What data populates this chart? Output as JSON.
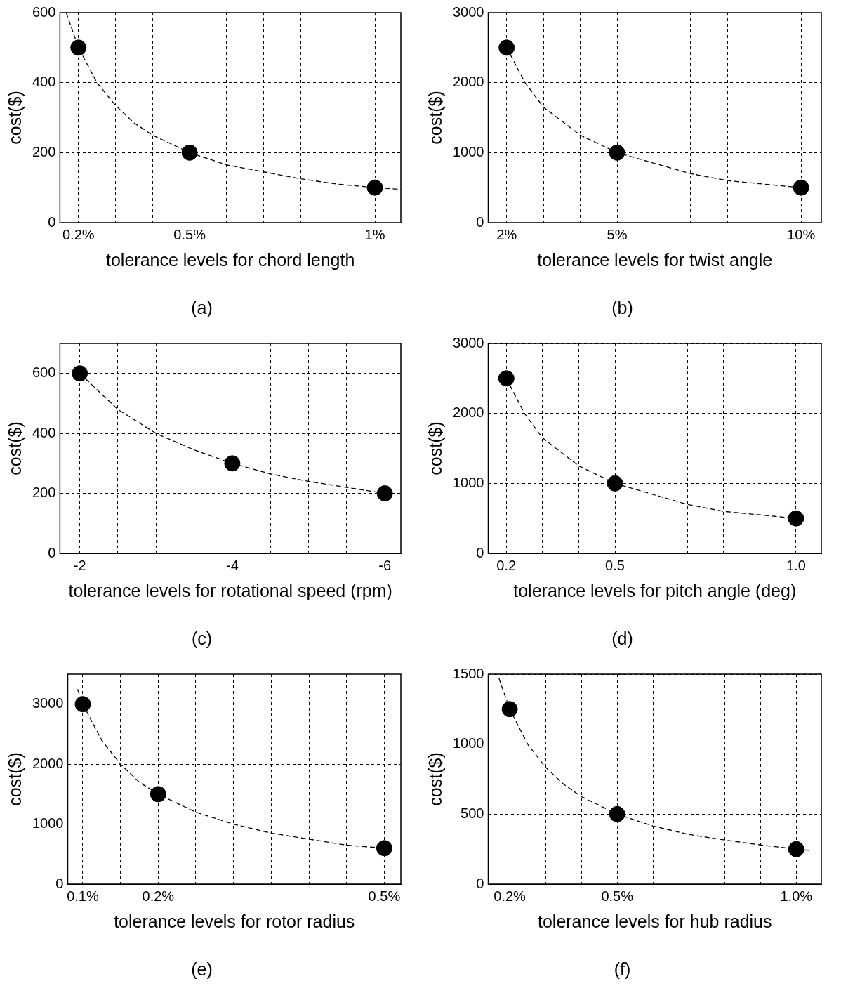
{
  "chart_data": [
    {
      "type": "scatter",
      "title": "(a)",
      "xlabel": "tolerance levels for chord length",
      "ylabel": "cost($)",
      "x": [
        0.2,
        0.5,
        1
      ],
      "xlim": [
        0.15,
        1.07
      ],
      "ylim": [
        0,
        600
      ],
      "xticks": [
        {
          "value": 0.2,
          "label": "0.2%"
        },
        {
          "value": 0.3,
          "label": null
        },
        {
          "value": 0.4,
          "label": null
        },
        {
          "value": 0.5,
          "label": "0.5%"
        },
        {
          "value": 0.6,
          "label": null
        },
        {
          "value": 0.7,
          "label": null
        },
        {
          "value": 0.8,
          "label": null
        },
        {
          "value": 0.9,
          "label": null
        },
        {
          "value": 1,
          "label": "1%"
        }
      ],
      "yticks": [
        0,
        200,
        400,
        600
      ],
      "grid": true,
      "series": [
        {
          "type": "scatter",
          "marker": "circle",
          "color": "#000000",
          "values": [
            500,
            200,
            100
          ]
        },
        {
          "type": "line",
          "marker": "none",
          "line_style": "dashed",
          "color": "#000000",
          "x": [
            0.167,
            0.2,
            0.25,
            0.3,
            0.35,
            0.4,
            0.5,
            0.6,
            0.7,
            0.8,
            0.9,
            1.0,
            1.07
          ],
          "values": [
            600,
            500,
            400,
            335,
            285,
            250,
            200,
            165,
            145,
            125,
            110,
            100,
            95
          ]
        }
      ]
    },
    {
      "type": "scatter",
      "title": "(b)",
      "xlabel": "tolerance levels for twist angle",
      "ylabel": "cost($)",
      "x": [
        2,
        5,
        10
      ],
      "xlim": [
        1.5,
        10.55
      ],
      "ylim": [
        0,
        3000
      ],
      "xticks": [
        {
          "value": 2,
          "label": "2%"
        },
        {
          "value": 3,
          "label": null
        },
        {
          "value": 4,
          "label": null
        },
        {
          "value": 5,
          "label": "5%"
        },
        {
          "value": 6,
          "label": null
        },
        {
          "value": 7,
          "label": null
        },
        {
          "value": 8,
          "label": null
        },
        {
          "value": 9,
          "label": null
        },
        {
          "value": 10,
          "label": "10%"
        }
      ],
      "yticks": [
        0,
        1000,
        2000,
        3000
      ],
      "grid": true,
      "series": [
        {
          "type": "scatter",
          "marker": "circle",
          "color": "#000000",
          "values": [
            2500,
            1000,
            500
          ]
        },
        {
          "type": "line",
          "marker": "none",
          "line_style": "dashed",
          "color": "#000000",
          "x": [
            2,
            2.5,
            3,
            3.5,
            4,
            5,
            6,
            7,
            8,
            9,
            10,
            10.2
          ],
          "values": [
            2500,
            2000,
            1650,
            1450,
            1250,
            1000,
            850,
            700,
            600,
            550,
            500,
            500
          ]
        }
      ]
    },
    {
      "type": "scatter",
      "title": "(c)",
      "xlabel": "tolerance levels for rotational speed (rpm)",
      "ylabel": "cost($)",
      "x": [
        -2,
        -4,
        -6
      ],
      "xlim": [
        -1.74,
        -6.21
      ],
      "ylim": [
        0,
        700
      ],
      "xticks": [
        -2,
        {
          "value": -2.5,
          "label": null
        },
        {
          "value": -3,
          "label": null
        },
        {
          "value": -3.5,
          "label": null
        },
        -4,
        {
          "value": -4.5,
          "label": null
        },
        {
          "value": -5,
          "label": null
        },
        {
          "value": -5.5,
          "label": null
        },
        -6
      ],
      "yticks": [
        0,
        200,
        400,
        600
      ],
      "grid": true,
      "series": [
        {
          "type": "scatter",
          "marker": "circle",
          "color": "#000000",
          "values": [
            600,
            300,
            200
          ]
        },
        {
          "type": "line",
          "marker": "none",
          "line_style": "dashed",
          "color": "#000000",
          "x": [
            -2,
            -2.5,
            -3,
            -3.5,
            -4,
            -4.5,
            -5,
            -5.5,
            -6,
            -6.1
          ],
          "values": [
            600,
            480,
            400,
            345,
            300,
            265,
            240,
            220,
            200,
            197
          ]
        }
      ]
    },
    {
      "type": "scatter",
      "title": "(d)",
      "xlabel": "tolerance levels for pitch angle (deg)",
      "ylabel": "cost($)",
      "x": [
        0.2,
        0.5,
        1
      ],
      "xlim": [
        0.15,
        1.07
      ],
      "ylim": [
        0,
        3000
      ],
      "xticks": [
        0.2,
        {
          "value": 0.3,
          "label": null
        },
        {
          "value": 0.4,
          "label": null
        },
        0.5,
        {
          "value": 0.6,
          "label": null
        },
        {
          "value": 0.7,
          "label": null
        },
        {
          "value": 0.8,
          "label": null
        },
        {
          "value": 0.9,
          "label": null
        },
        {
          "value": 1,
          "label": "1.0"
        }
      ],
      "yticks": [
        0,
        1000,
        2000,
        3000
      ],
      "grid": true,
      "series": [
        {
          "type": "scatter",
          "marker": "circle",
          "color": "#000000",
          "values": [
            2500,
            1000,
            500
          ]
        },
        {
          "type": "line",
          "marker": "none",
          "line_style": "dashed",
          "color": "#000000",
          "x": [
            0.2,
            0.25,
            0.3,
            0.35,
            0.4,
            0.5,
            0.6,
            0.7,
            0.8,
            0.9,
            1.0
          ],
          "values": [
            2500,
            2000,
            1650,
            1450,
            1250,
            1000,
            850,
            700,
            600,
            550,
            500
          ]
        }
      ]
    },
    {
      "type": "scatter",
      "title": "(e)",
      "xlabel": "tolerance levels for rotor radius",
      "ylabel": "cost($)",
      "x": [
        0.1,
        0.2,
        0.5
      ],
      "xlim": [
        0.08,
        0.522
      ],
      "ylim": [
        0,
        3500
      ],
      "xticks": [
        {
          "value": 0.1,
          "label": "0.1%"
        },
        {
          "value": 0.15,
          "label": null
        },
        {
          "value": 0.2,
          "label": "0.2%"
        },
        {
          "value": 0.25,
          "label": null
        },
        {
          "value": 0.3,
          "label": null
        },
        {
          "value": 0.35,
          "label": null
        },
        {
          "value": 0.4,
          "label": null
        },
        {
          "value": 0.45,
          "label": null
        },
        {
          "value": 0.5,
          "label": "0.5%"
        }
      ],
      "yticks": [
        0,
        1000,
        2000,
        3000
      ],
      "grid": true,
      "series": [
        {
          "type": "scatter",
          "marker": "circle",
          "color": "#000000",
          "values": [
            3000,
            1500,
            600
          ]
        },
        {
          "type": "line",
          "marker": "none",
          "line_style": "dashed",
          "color": "#000000",
          "x": [
            0.093,
            0.1,
            0.125,
            0.15,
            0.175,
            0.2,
            0.25,
            0.3,
            0.35,
            0.4,
            0.45,
            0.5
          ],
          "values": [
            3250,
            3000,
            2400,
            2000,
            1700,
            1500,
            1200,
            1000,
            850,
            750,
            650,
            600
          ]
        }
      ]
    },
    {
      "type": "scatter",
      "title": "(f)",
      "xlabel": "tolerance levels for hub radius",
      "ylabel": "cost($)",
      "x": [
        0.2,
        0.5,
        1
      ],
      "xlim": [
        0.14,
        1.07
      ],
      "ylim": [
        0,
        1500
      ],
      "xticks": [
        {
          "value": 0.2,
          "label": "0.2%"
        },
        {
          "value": 0.3,
          "label": null
        },
        {
          "value": 0.4,
          "label": null
        },
        {
          "value": 0.5,
          "label": "0.5%"
        },
        {
          "value": 0.6,
          "label": null
        },
        {
          "value": 0.7,
          "label": null
        },
        {
          "value": 0.8,
          "label": null
        },
        {
          "value": 0.9,
          "label": null
        },
        {
          "value": 1,
          "label": "1.0%"
        }
      ],
      "yticks": [
        0,
        500,
        1000,
        1500
      ],
      "grid": true,
      "series": [
        {
          "type": "scatter",
          "marker": "circle",
          "color": "#000000",
          "values": [
            1250,
            500,
            250
          ]
        },
        {
          "type": "line",
          "marker": "none",
          "line_style": "dashed",
          "color": "#000000",
          "x": [
            0.17,
            0.2,
            0.25,
            0.3,
            0.35,
            0.4,
            0.5,
            0.6,
            0.7,
            0.8,
            0.9,
            1.0,
            1.04
          ],
          "values": [
            1470,
            1250,
            1000,
            835,
            715,
            625,
            500,
            415,
            355,
            315,
            280,
            250,
            240
          ]
        }
      ]
    }
  ]
}
